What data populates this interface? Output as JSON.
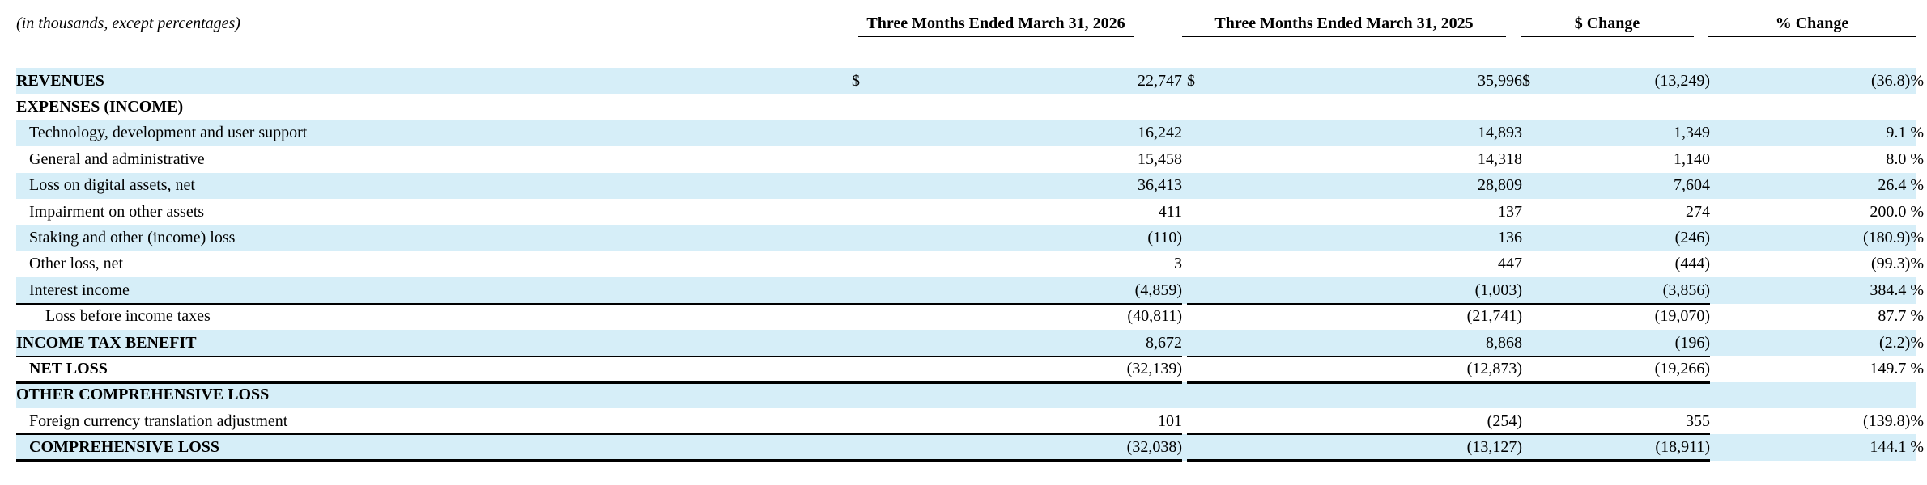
{
  "header": {
    "note": "(in thousands, except percentages)",
    "columns": [
      "Three Months Ended March 31, 2026",
      "Three Months Ended March 31, 2025",
      "$ Change",
      "% Change"
    ]
  },
  "currency_symbol": "$",
  "rows": [
    {
      "label": "REVENUES",
      "v2026": "22,747",
      "v2025": "35,996",
      "change": "(13,249)",
      "pct": "(36.8)%"
    },
    {
      "label": "EXPENSES (INCOME)"
    },
    {
      "label": "Technology, development and user support",
      "v2026": "16,242",
      "v2025": "14,893",
      "change": "1,349",
      "pct": "9.1 %"
    },
    {
      "label": "General and administrative",
      "v2026": "15,458",
      "v2025": "14,318",
      "change": "1,140",
      "pct": "8.0 %"
    },
    {
      "label": "Loss on digital assets, net",
      "v2026": "36,413",
      "v2025": "28,809",
      "change": "7,604",
      "pct": "26.4 %"
    },
    {
      "label": "Impairment on other assets",
      "v2026": "411",
      "v2025": "137",
      "change": "274",
      "pct": "200.0 %"
    },
    {
      "label": "Staking and other (income) loss",
      "v2026": "(110)",
      "v2025": "136",
      "change": "(246)",
      "pct": "(180.9)%"
    },
    {
      "label": "Other loss, net",
      "v2026": "3",
      "v2025": "447",
      "change": "(444)",
      "pct": "(99.3)%"
    },
    {
      "label": "Interest income",
      "v2026": "(4,859)",
      "v2025": "(1,003)",
      "change": "(3,856)",
      "pct": "384.4 %"
    },
    {
      "label": "Loss before income taxes",
      "v2026": "(40,811)",
      "v2025": "(21,741)",
      "change": "(19,070)",
      "pct": "87.7 %"
    },
    {
      "label": "INCOME TAX BENEFIT",
      "v2026": "8,672",
      "v2025": "8,868",
      "change": "(196)",
      "pct": "(2.2)%"
    },
    {
      "label": "NET LOSS",
      "v2026": "(32,139)",
      "v2025": "(12,873)",
      "change": "(19,266)",
      "pct": "149.7 %"
    },
    {
      "label": "OTHER COMPREHENSIVE LOSS"
    },
    {
      "label": "Foreign currency translation adjustment",
      "v2026": "101",
      "v2025": "(254)",
      "change": "355",
      "pct": "(139.8)%"
    },
    {
      "label": "COMPREHENSIVE LOSS",
      "v2026": "(32,038)",
      "v2025": "(13,127)",
      "change": "(18,911)",
      "pct": "144.1 %"
    }
  ]
}
